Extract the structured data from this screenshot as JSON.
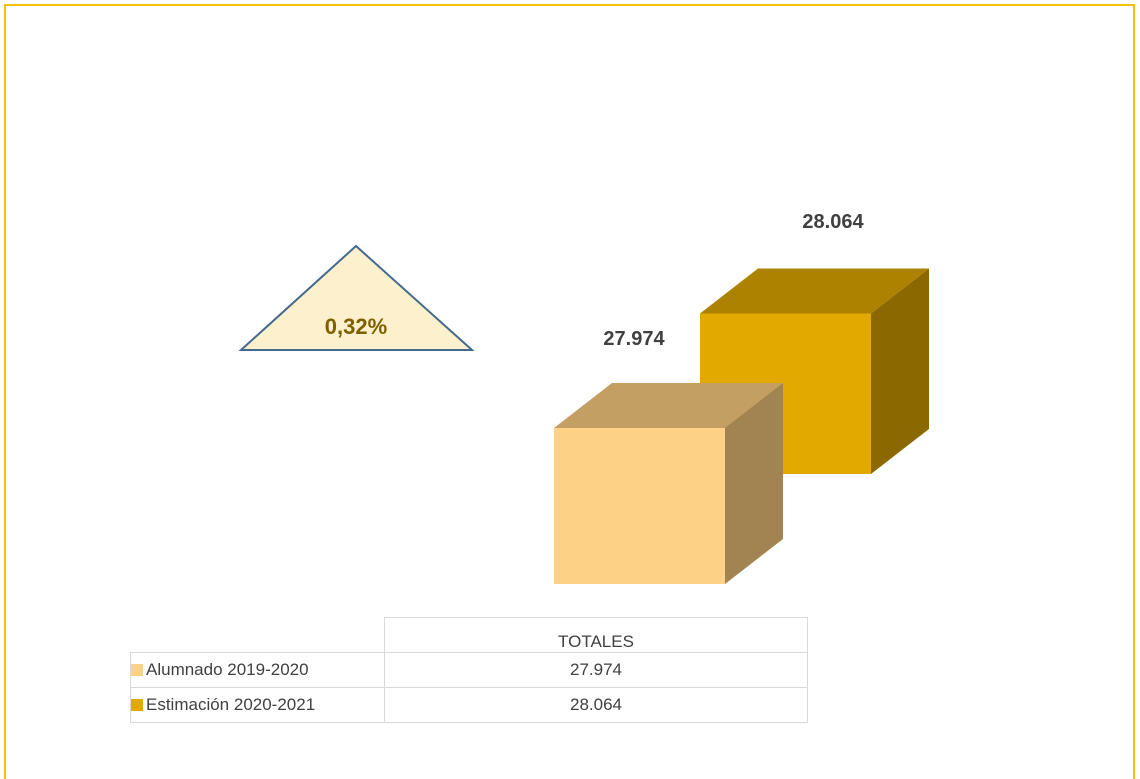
{
  "chart_data": {
    "type": "bar",
    "categories": [
      "TOTALES"
    ],
    "series": [
      {
        "name": "Alumnado 2019-2020",
        "values": [
          27974
        ],
        "label": "27.974",
        "color": "#fdd186"
      },
      {
        "name": "Estimación 2020-2021",
        "values": [
          28064
        ],
        "label": "28.064",
        "color": "#e2aa00"
      }
    ],
    "change_indicator": "0,32%",
    "table": {
      "header": "TOTALES",
      "rows": [
        {
          "name": "Alumnado 2019-2020",
          "value": "27.974"
        },
        {
          "name": "Estimación 2020-2021",
          "value": "28.064"
        }
      ]
    }
  }
}
